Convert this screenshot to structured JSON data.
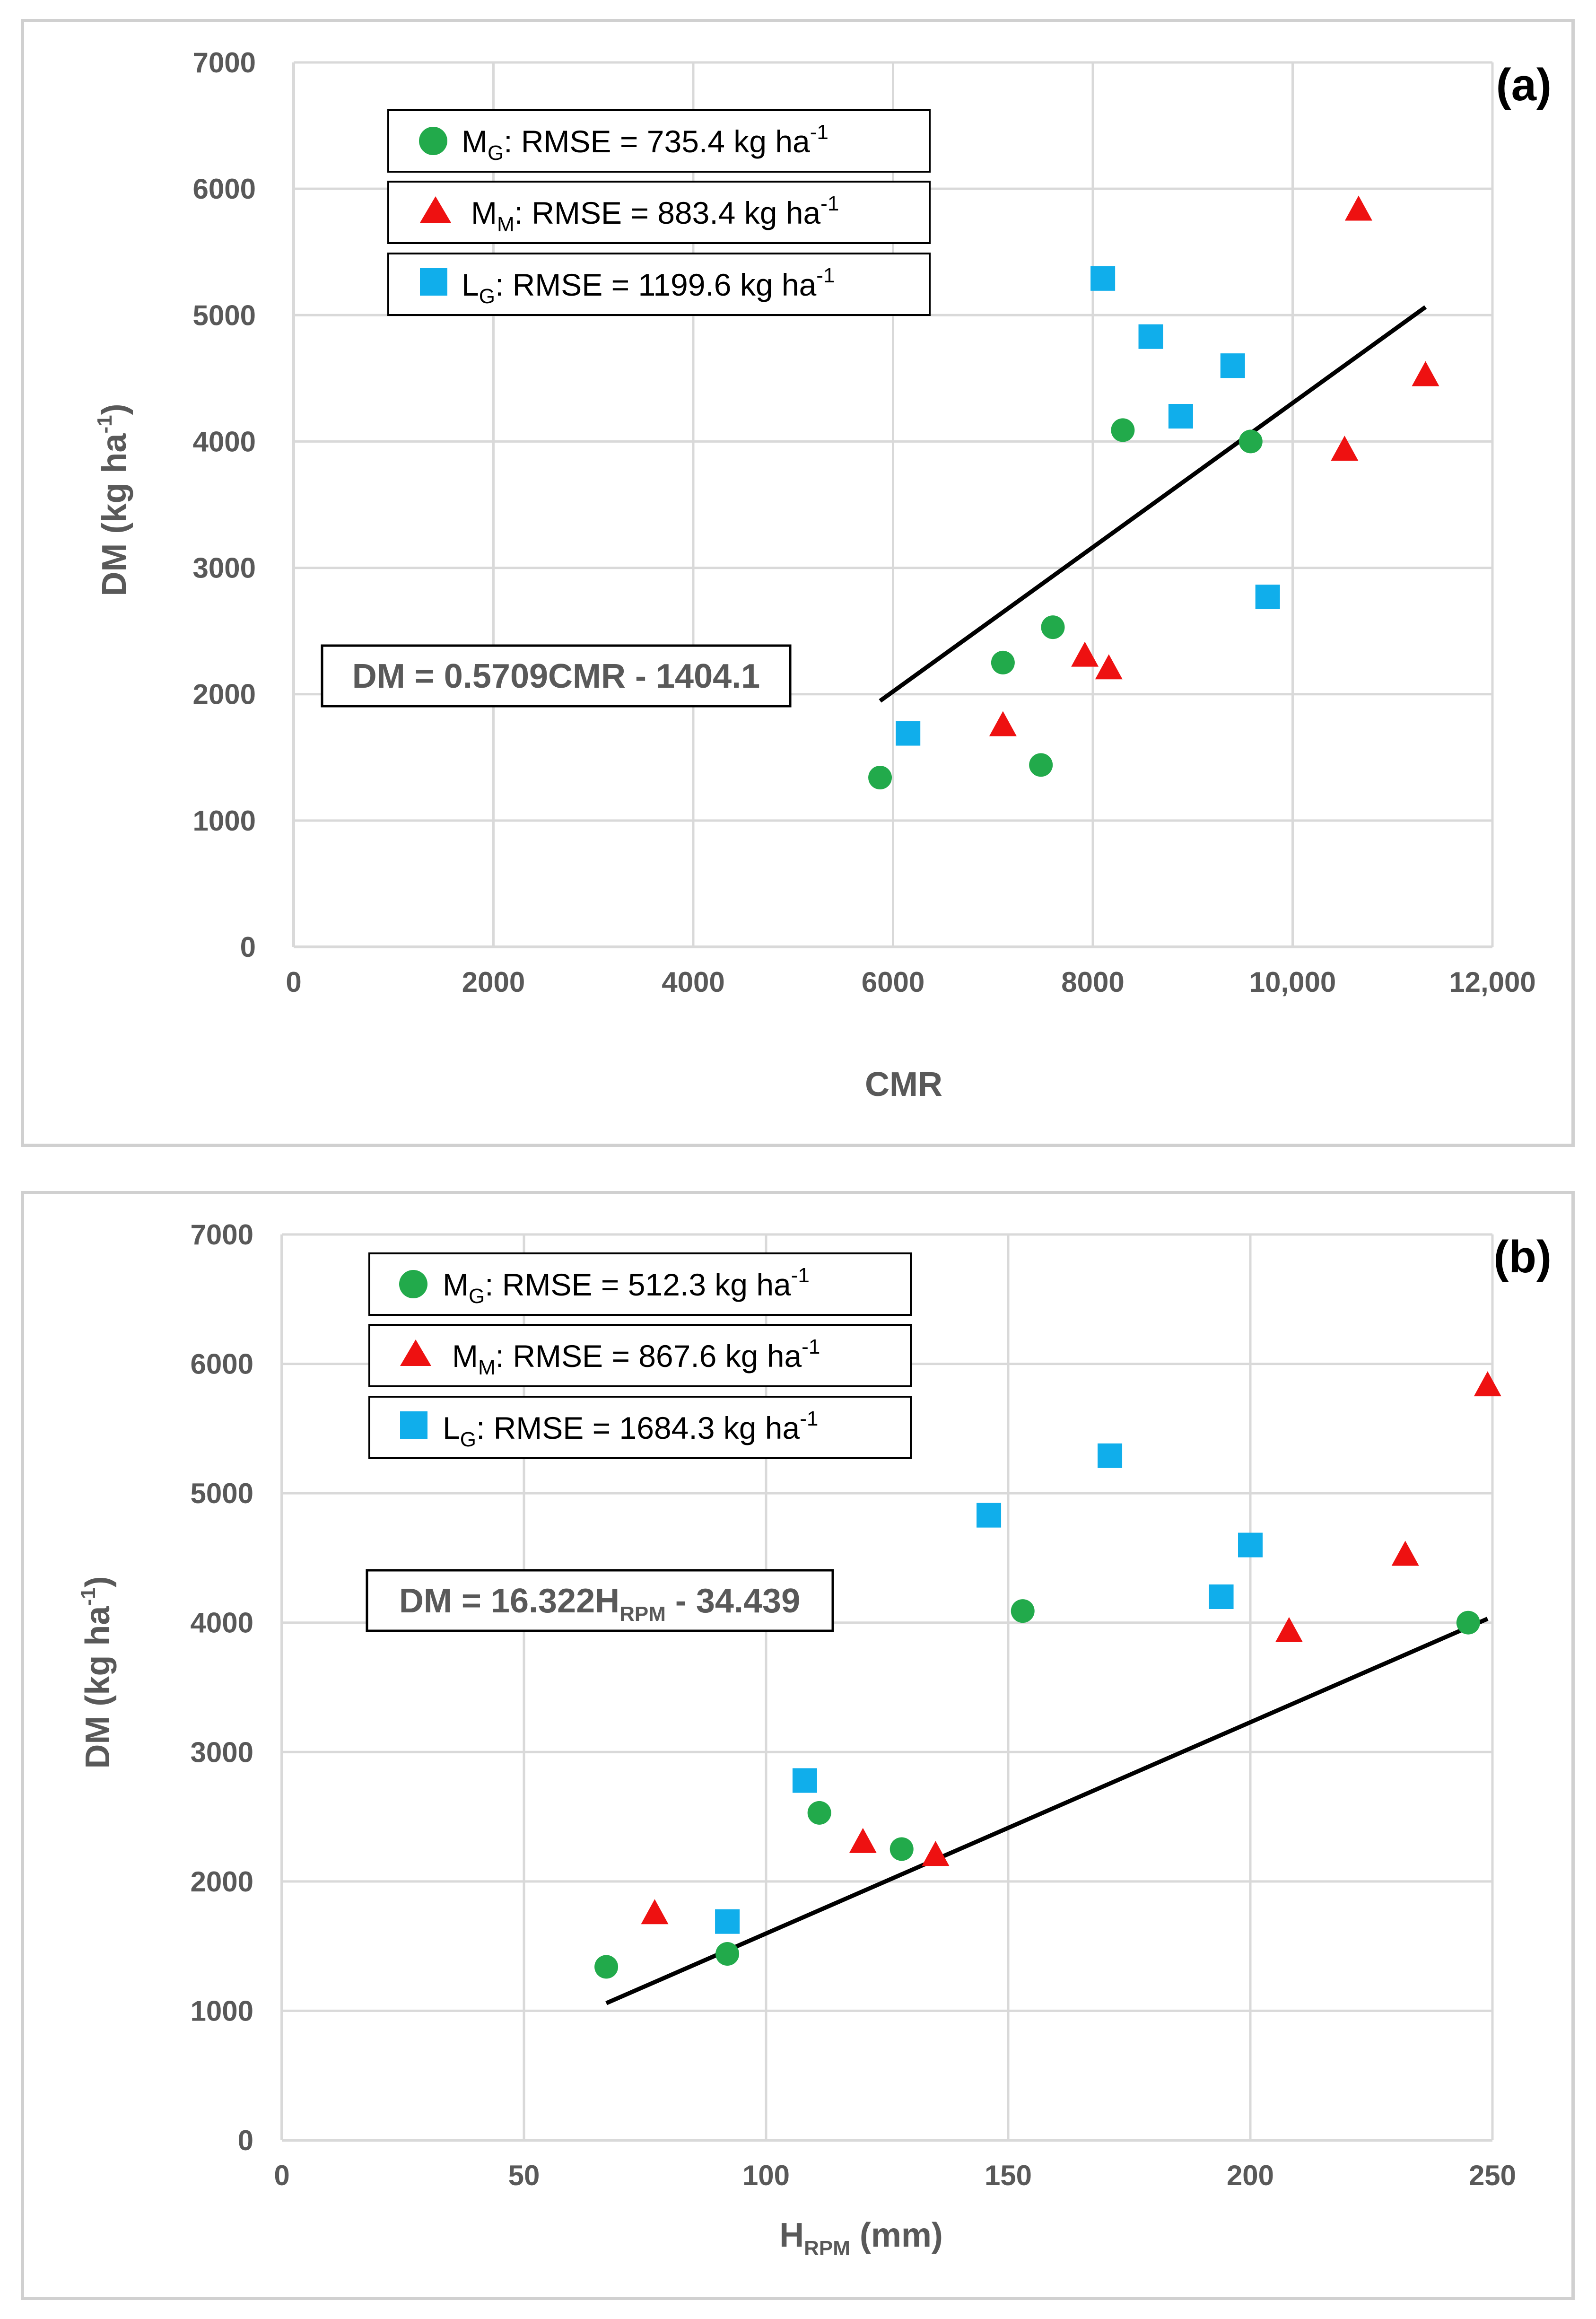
{
  "chart_data": [
    {
      "type": "scatter",
      "panel_label": "(a)",
      "xlabel": "CMR",
      "ylabel": {
        "base": "DM (kg ha",
        "sup": "-1",
        "close": ")"
      },
      "xlim": [
        0,
        12000
      ],
      "ylim": [
        0,
        7000
      ],
      "xticks": [
        0,
        2000,
        4000,
        6000,
        8000,
        10000,
        12000
      ],
      "xtick_labels": [
        "0",
        "2000",
        "4000",
        "6000",
        "8000",
        "10,000",
        "12,000"
      ],
      "yticks": [
        0,
        1000,
        2000,
        3000,
        4000,
        5000,
        6000,
        7000
      ],
      "ytick_labels": [
        "0",
        "1000",
        "2000",
        "3000",
        "4000",
        "5000",
        "6000",
        "7000"
      ],
      "grid": true,
      "series": [
        {
          "name": "MG",
          "marker": "circle",
          "color": "#22AA4B",
          "legend": {
            "main": "M",
            "sub": "G",
            "text": ": RMSE = 735.4 kg ha",
            "sup": "-1"
          },
          "points": [
            [
              5870,
              1340
            ],
            [
              7100,
              2250
            ],
            [
              7480,
              1440
            ],
            [
              7600,
              2530
            ],
            [
              8300,
              4090
            ],
            [
              9580,
              4000
            ]
          ]
        },
        {
          "name": "MM",
          "marker": "triangle",
          "color": "#EE1111",
          "legend": {
            "main": "M",
            "sub": "M",
            "text": ": RMSE = 883.4 kg ha",
            "sup": "-1"
          },
          "points": [
            [
              7100,
              1750
            ],
            [
              7920,
              2300
            ],
            [
              8160,
              2200
            ],
            [
              10520,
              3930
            ],
            [
              10660,
              5830
            ],
            [
              11330,
              4520
            ]
          ]
        },
        {
          "name": "LG",
          "marker": "square",
          "color": "#10AEEB",
          "legend": {
            "main": "L",
            "sub": "G",
            "text": ": RMSE = 1199.6 kg ha",
            "sup": "-1"
          },
          "points": [
            [
              6150,
              1690
            ],
            [
              8100,
              5290
            ],
            [
              8580,
              4830
            ],
            [
              8880,
              4200
            ],
            [
              9400,
              4600
            ],
            [
              9750,
              2770
            ]
          ]
        }
      ],
      "trendline": {
        "x1": 5870,
        "y1": 1947,
        "x2": 11330,
        "y2": 5064
      },
      "equation": {
        "text": "DM = 0.5709CMR - 1404.1"
      }
    },
    {
      "type": "scatter",
      "panel_label": "(b)",
      "xlabel": {
        "main": "H",
        "sub": "RPM",
        "rest": " (mm)"
      },
      "ylabel": {
        "base": "DM (kg ha",
        "sup": "-1",
        "close": ")"
      },
      "xlim": [
        0,
        250
      ],
      "ylim": [
        0,
        7000
      ],
      "xticks": [
        0,
        50,
        100,
        150,
        200,
        250
      ],
      "xtick_labels": [
        "0",
        "50",
        "100",
        "150",
        "200",
        "250"
      ],
      "yticks": [
        0,
        1000,
        2000,
        3000,
        4000,
        5000,
        6000,
        7000
      ],
      "ytick_labels": [
        "0",
        "1000",
        "2000",
        "3000",
        "4000",
        "5000",
        "6000",
        "7000"
      ],
      "grid": true,
      "series": [
        {
          "name": "MG",
          "marker": "circle",
          "color": "#22AA4B",
          "legend": {
            "main": "M",
            "sub": "G",
            "text": ": RMSE = 512.3 kg ha",
            "sup": "-1"
          },
          "points": [
            [
              67,
              1340
            ],
            [
              92,
              1440
            ],
            [
              111,
              2530
            ],
            [
              128,
              2250
            ],
            [
              153,
              4090
            ],
            [
              245,
              4000
            ]
          ]
        },
        {
          "name": "MM",
          "marker": "triangle",
          "color": "#EE1111",
          "legend": {
            "main": "M",
            "sub": "M",
            "text": ": RMSE = 867.6 kg ha",
            "sup": "-1"
          },
          "points": [
            [
              77,
              1750
            ],
            [
              120,
              2300
            ],
            [
              135,
              2200
            ],
            [
              208,
              3930
            ],
            [
              232,
              4520
            ],
            [
              249,
              5830
            ]
          ]
        },
        {
          "name": "LG",
          "marker": "square",
          "color": "#10AEEB",
          "legend": {
            "main": "L",
            "sub": "G",
            "text": ": RMSE = 1684.3 kg ha",
            "sup": "-1"
          },
          "points": [
            [
              92,
              1690
            ],
            [
              108,
              2780
            ],
            [
              146,
              4830
            ],
            [
              171,
              5290
            ],
            [
              194,
              4200
            ],
            [
              200,
              4600
            ]
          ]
        }
      ],
      "trendline": {
        "x1": 67,
        "y1": 1059,
        "x2": 249,
        "y2": 4030
      },
      "equation": {
        "main": "DM = 16.322H",
        "sub": "RPM",
        "rest": " - 34.439"
      }
    }
  ]
}
